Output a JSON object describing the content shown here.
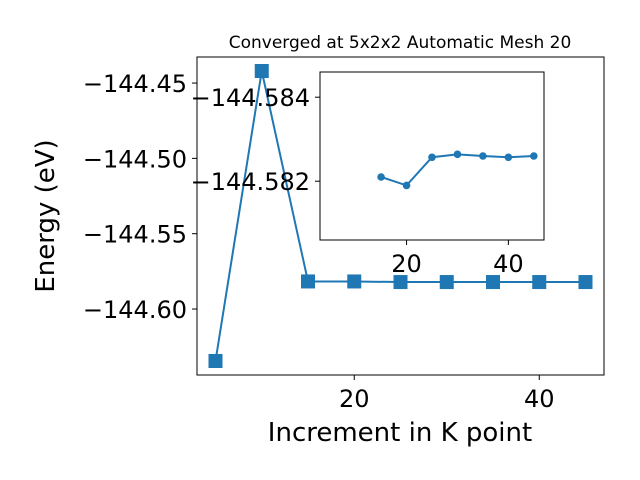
{
  "chart_data": [
    {
      "type": "line",
      "title": "Converged at 5x2x2 Automatic Mesh 20",
      "xlabel": "Increment in K point",
      "ylabel": "Energy (eV)",
      "x": [
        5,
        10,
        15,
        20,
        25,
        30,
        35,
        40,
        45
      ],
      "series": [
        {
          "color": "#1f77b4",
          "marker": "square",
          "values": [
            -144.6345,
            -144.442,
            -144.5817,
            -144.5817,
            -144.5821,
            -144.5821,
            -144.5821,
            -144.5821,
            -144.5821
          ]
        }
      ],
      "xlim": [
        3,
        47
      ],
      "xticks": [
        20,
        40
      ],
      "ylim": [
        -144.6438,
        -144.4327
      ],
      "yticks": [
        {
          "value": -144.45,
          "label": "−144.45"
        },
        {
          "value": -144.5,
          "label": "−144.50"
        },
        {
          "value": -144.55,
          "label": "−144.55"
        },
        {
          "value": -144.6,
          "label": "−144.60"
        }
      ]
    },
    {
      "type": "line",
      "x": [
        15,
        20,
        25,
        30,
        35,
        40,
        45
      ],
      "series": [
        {
          "color": "#1f77b4",
          "marker": "circle",
          "values": [
            -144.5821,
            -144.5819,
            -144.58257,
            -144.58264,
            -144.5826,
            -144.58257,
            -144.5826
          ]
        }
      ],
      "xlim": [
        3,
        47
      ],
      "xticks": [
        20,
        40
      ],
      "ylim": [
        -144.5806,
        -144.5846
      ],
      "yticks": [
        {
          "value": -144.584,
          "label": "−144.584"
        },
        {
          "value": -144.582,
          "label": "−144.582"
        }
      ]
    }
  ]
}
